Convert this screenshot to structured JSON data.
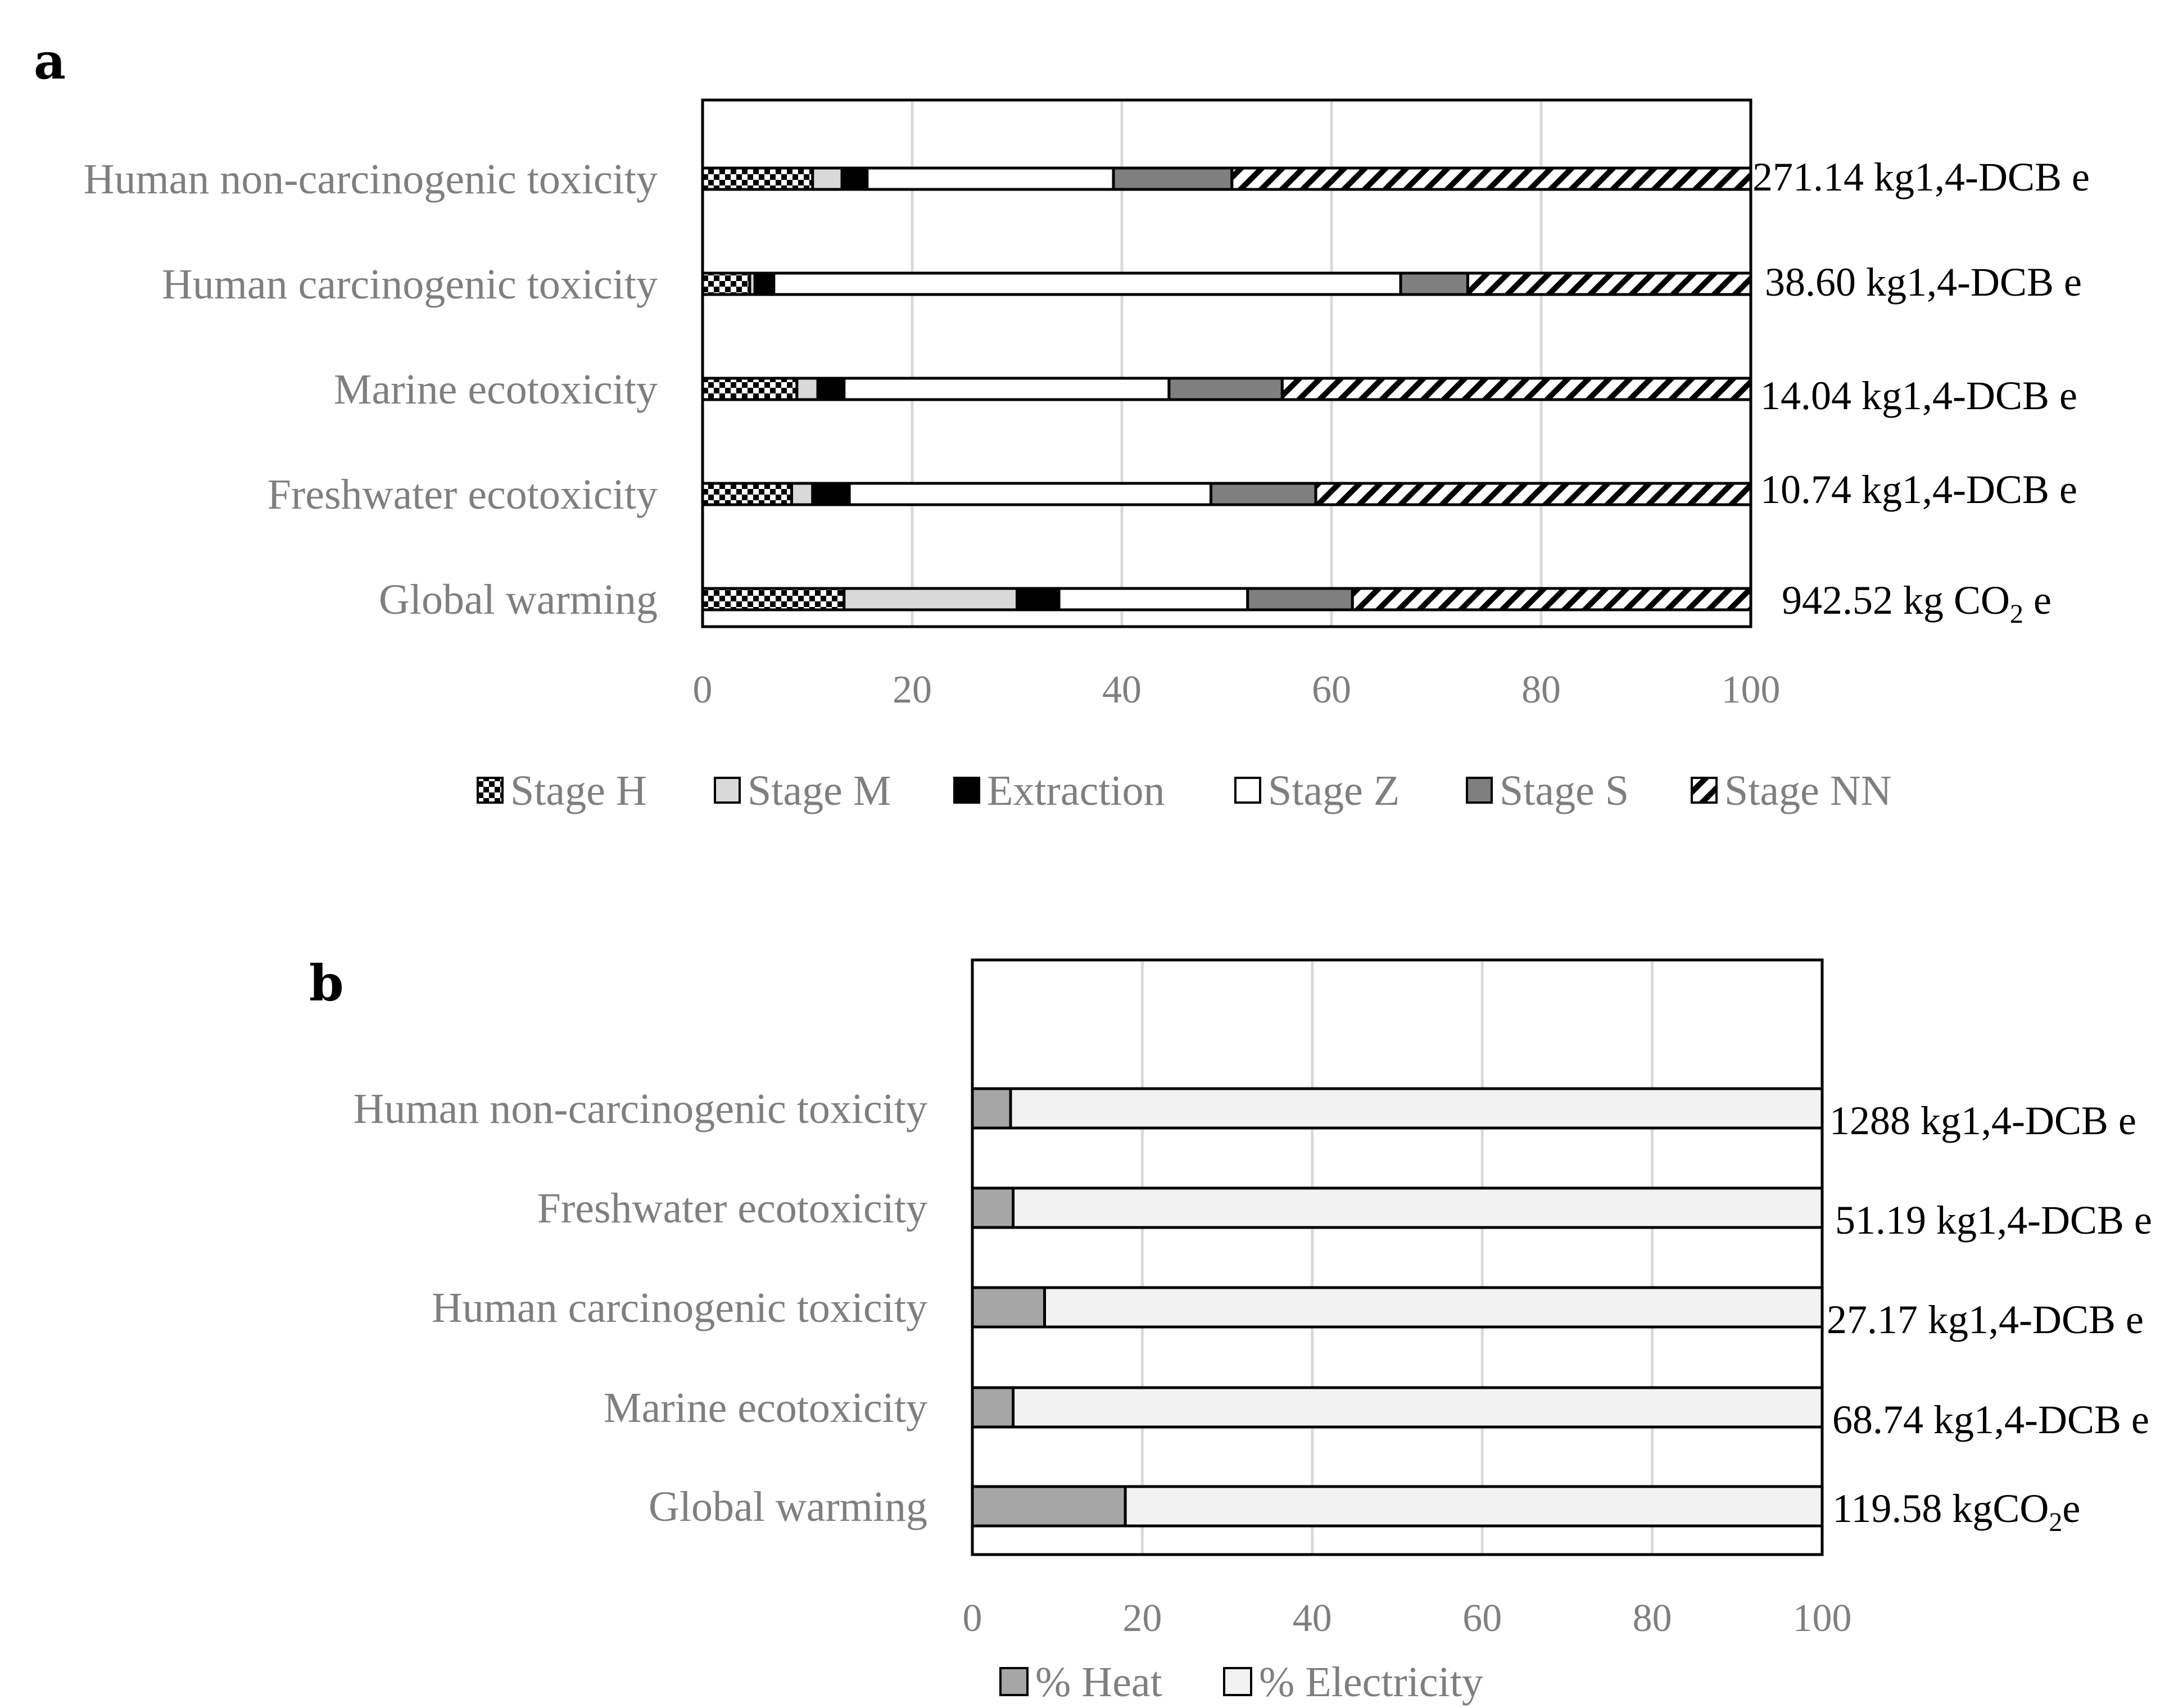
{
  "chart_data": [
    {
      "panel": "a",
      "type": "bar",
      "orientation": "horizontal",
      "stacked": true,
      "categories": [
        "Human non-carcinogenic toxicity",
        "Human carcinogenic toxicity",
        "Marine ecotoxicity",
        "Freshwater ecotoxicity",
        "Global warming"
      ],
      "series": [
        {
          "name": "Stage H",
          "pattern": "checker",
          "values": [
            10.5,
            4.5,
            9.0,
            8.5,
            13.5
          ]
        },
        {
          "name": "Stage M",
          "pattern": "solid",
          "color": "#d9d9d9",
          "values": [
            2.8,
            0.5,
            2.0,
            2.0,
            16.5
          ]
        },
        {
          "name": "Extraction",
          "pattern": "solid",
          "color": "#000000",
          "values": [
            2.4,
            1.8,
            2.5,
            3.5,
            4.0
          ]
        },
        {
          "name": "Stage Z",
          "pattern": "solid",
          "color": "#ffffff",
          "values": [
            23.5,
            59.8,
            31.0,
            34.5,
            18.0
          ]
        },
        {
          "name": "Stage S",
          "pattern": "solid",
          "color": "#7f7f7f",
          "values": [
            11.3,
            6.4,
            10.8,
            10.0,
            10.0
          ]
        },
        {
          "name": "Stage NN",
          "pattern": "diagonal",
          "values": [
            49.5,
            27.0,
            44.7,
            41.5,
            38.0
          ]
        }
      ],
      "totals": [
        {
          "text": "271.14 kg1,4-DCB e"
        },
        {
          "text": "38.60 kg1,4-DCB e"
        },
        {
          "text": "14.04 kg1,4-DCB e"
        },
        {
          "text": "10.74 kg1,4-DCB e"
        },
        {
          "text": "942.52 kg CO",
          "sub": "2",
          "suffix": " e"
        }
      ],
      "xlim": [
        0,
        100
      ],
      "xticks": [
        "0",
        "20",
        "40",
        "60",
        "80",
        "100"
      ],
      "grid": true,
      "legend": "bottom"
    },
    {
      "panel": "b",
      "type": "bar",
      "orientation": "horizontal",
      "stacked": true,
      "categories": [
        "Human non-carcinogenic toxicity",
        "Freshwater ecotoxicity",
        "Human carcinogenic toxicity",
        "Marine ecotoxicity",
        "Global warming"
      ],
      "series": [
        {
          "name": "% Heat",
          "color": "#a6a6a6",
          "values": [
            4.5,
            4.8,
            8.5,
            4.8,
            18.0
          ]
        },
        {
          "name": "% Electricity",
          "color": "#f2f2f2",
          "values": [
            95.5,
            95.2,
            91.5,
            95.2,
            82.0
          ]
        }
      ],
      "totals": [
        {
          "text": "1288 kg1,4-DCB e"
        },
        {
          "text": "51.19 kg1,4-DCB e"
        },
        {
          "text": "27.17 kg1,4-DCB e"
        },
        {
          "text": "68.74 kg1,4-DCB e"
        },
        {
          "text": "119.58 kgCO",
          "sub": "2",
          "suffix": "e"
        }
      ],
      "xlim": [
        0,
        100
      ],
      "xticks": [
        "0",
        "20",
        "40",
        "60",
        "80",
        "100"
      ],
      "grid": true,
      "legend": "bottom"
    }
  ]
}
